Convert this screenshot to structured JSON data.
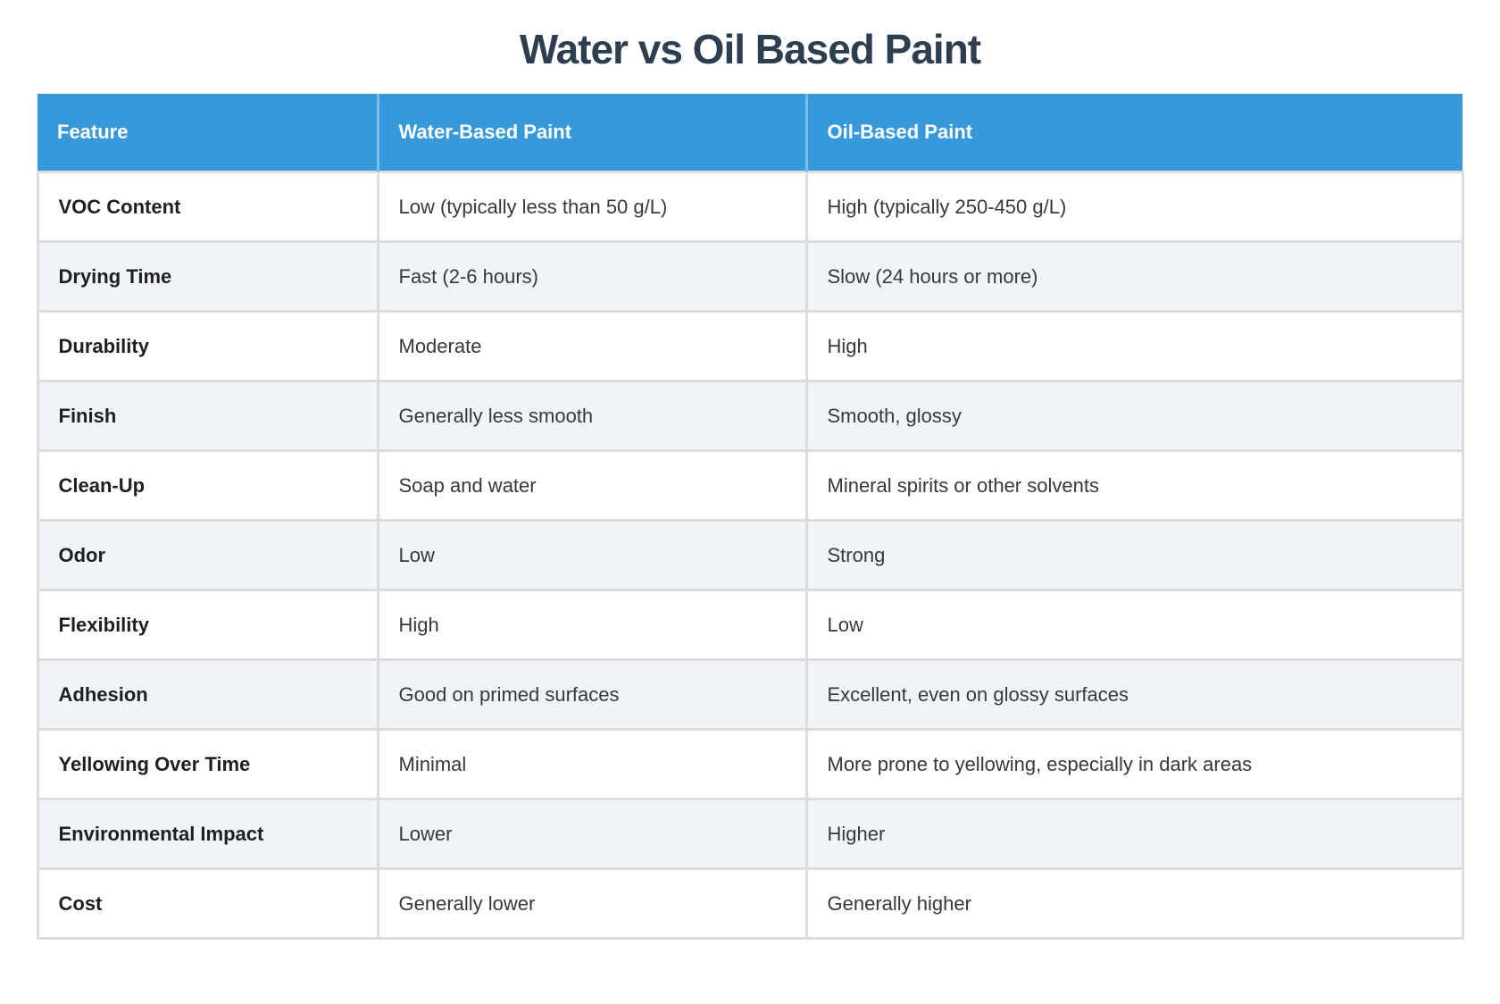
{
  "page": {
    "title": "Water vs Oil Based Paint"
  },
  "colors": {
    "title_text": "#2c3e50",
    "header_background": "#3899da",
    "header_text": "#ffffff",
    "row_stripe": "#f0f4f8",
    "row_plain": "#ffffff",
    "cell_border": "#dcdcdc",
    "feature_text": "#1f1f1f",
    "value_text": "#383838"
  },
  "table": {
    "columns": [
      "Feature",
      "Water-Based Paint",
      "Oil-Based Paint"
    ],
    "rows": [
      {
        "feature": "VOC Content",
        "water": "Low (typically less than 50 g/L)",
        "oil": "High (typically 250-450 g/L)"
      },
      {
        "feature": "Drying Time",
        "water": "Fast (2-6 hours)",
        "oil": "Slow (24 hours or more)"
      },
      {
        "feature": "Durability",
        "water": "Moderate",
        "oil": "High"
      },
      {
        "feature": "Finish",
        "water": "Generally less smooth",
        "oil": "Smooth, glossy"
      },
      {
        "feature": "Clean-Up",
        "water": "Soap and water",
        "oil": "Mineral spirits or other solvents"
      },
      {
        "feature": "Odor",
        "water": "Low",
        "oil": "Strong"
      },
      {
        "feature": "Flexibility",
        "water": "High",
        "oil": "Low"
      },
      {
        "feature": "Adhesion",
        "water": "Good on primed surfaces",
        "oil": "Excellent, even on glossy surfaces"
      },
      {
        "feature": "Yellowing Over Time",
        "water": "Minimal",
        "oil": "More prone to yellowing, especially in dark areas"
      },
      {
        "feature": "Environmental Impact",
        "water": "Lower",
        "oil": "Higher"
      },
      {
        "feature": "Cost",
        "water": "Generally lower",
        "oil": "Generally higher"
      }
    ]
  },
  "chart_data": {
    "type": "table",
    "title": "Water vs Oil Based Paint",
    "columns": [
      "Feature",
      "Water-Based Paint",
      "Oil-Based Paint"
    ],
    "rows": [
      [
        "VOC Content",
        "Low (typically less than 50 g/L)",
        "High (typically 250-450 g/L)"
      ],
      [
        "Drying Time",
        "Fast (2-6 hours)",
        "Slow (24 hours or more)"
      ],
      [
        "Durability",
        "Moderate",
        "High"
      ],
      [
        "Finish",
        "Generally less smooth",
        "Smooth, glossy"
      ],
      [
        "Clean-Up",
        "Soap and water",
        "Mineral spirits or other solvents"
      ],
      [
        "Odor",
        "Low",
        "Strong"
      ],
      [
        "Flexibility",
        "High",
        "Low"
      ],
      [
        "Adhesion",
        "Good on primed surfaces",
        "Excellent, even on glossy surfaces"
      ],
      [
        "Yellowing Over Time",
        "Minimal",
        "More prone to yellowing, especially in dark areas"
      ],
      [
        "Environmental Impact",
        "Lower",
        "Higher"
      ],
      [
        "Cost",
        "Generally lower",
        "Generally higher"
      ]
    ],
    "layout": {
      "header_row": true,
      "striped_rows": "even rows shaded",
      "title_position": "top-center"
    }
  }
}
